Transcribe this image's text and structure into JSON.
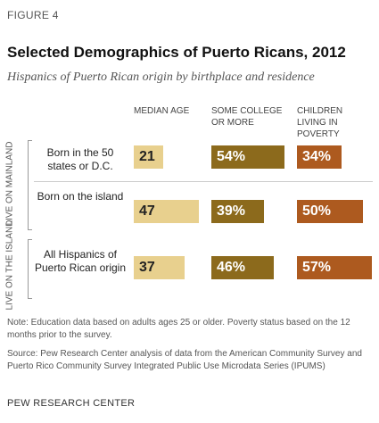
{
  "header": {
    "figure": "FIGURE 4",
    "title": "Selected Demographics of Puerto Ricans, 2012",
    "subtitle": "Hispanics of Puerto Rican origin by birthplace and residence"
  },
  "chart_data": {
    "type": "table",
    "columns": [
      "MEDIAN AGE",
      "SOME COLLEGE OR MORE",
      "CHILDREN LIVING IN POVERTY"
    ],
    "sections": [
      {
        "name": "LIVE ON MAINLAND",
        "rows": [
          {
            "label": "Born in the 50 states or D.C.",
            "median_age": 21,
            "median_age_label": "21",
            "some_college": 54,
            "some_college_label": "54%",
            "poverty": 34,
            "poverty_label": "34%"
          },
          {
            "label": "Born on the island",
            "median_age": 47,
            "median_age_label": "47",
            "some_college": 39,
            "some_college_label": "39%",
            "poverty": 50,
            "poverty_label": "50%"
          }
        ]
      },
      {
        "name": "LIVE ON THE ISLAND",
        "rows": [
          {
            "label": "All Hispanics of Puerto Rican origin",
            "median_age": 37,
            "median_age_label": "37",
            "some_college": 46,
            "some_college_label": "46%",
            "poverty": 57,
            "poverty_label": "57%"
          }
        ]
      }
    ],
    "colors": {
      "median_age": "#e8d08e",
      "some_college": "#8c6a1c",
      "poverty": "#ad5a1f"
    }
  },
  "footer": {
    "note": "Note: Education data based on adults ages 25 or older. Poverty status based on the 12 months prior to the survey.",
    "source": "Source: Pew Research Center analysis of data from the American Community Survey and Puerto Rico Community Survey Integrated Public Use Microdata Series (IPUMS)",
    "org": "PEW RESEARCH CENTER"
  }
}
